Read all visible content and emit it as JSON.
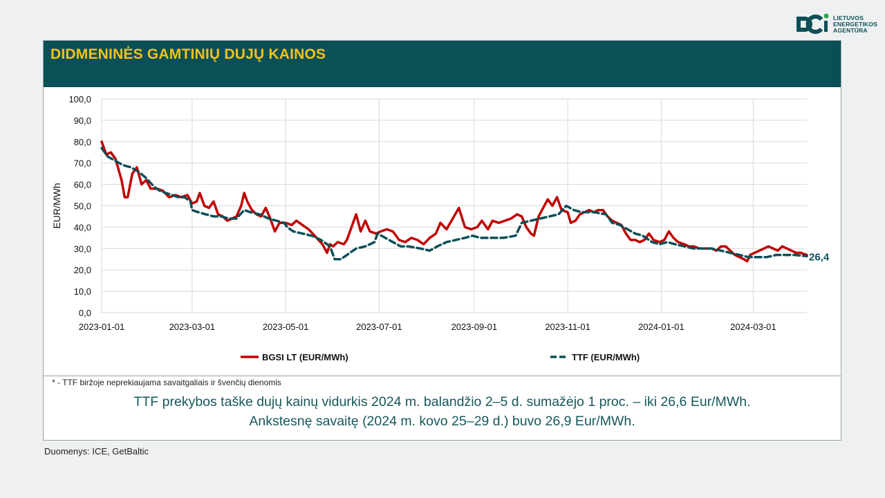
{
  "logo": {
    "icon": "lea-logo-icon",
    "lines": [
      "LIETUVOS",
      "ENERGETIKOS",
      "AGENTŪRA"
    ]
  },
  "header": {
    "title": "DIDMENINĖS GAMTINIŲ DUJŲ KAINOS"
  },
  "footnote": "* - TTF biržoje neprekiaujama savaitgaliais ir švenčių dienomis",
  "summary": {
    "line1": "TTF prekybos taške dujų kainų vidurkis 2024 m. balandžio 2–5 d. sumažėjo 1 proc. – iki 26,6 Eur/MWh.",
    "line2": "Ankstesnę savaitę (2024 m. kovo 25–29 d.) buvo 26,9 Eur/MWh."
  },
  "source": "Duomenys: ICE, GetBaltic",
  "colors": {
    "header_bg": "#0b4f57",
    "title": "#f2c318",
    "bgsi": "#c00000",
    "ttf": "#0b4f57",
    "text": "#17575c"
  },
  "chart_data": {
    "type": "line",
    "ylabel": "EUR/MWh",
    "ylim": [
      0,
      100
    ],
    "yticks": [
      "0,0",
      "10,0",
      "20,0",
      "30,0",
      "40,0",
      "50,0",
      "60,0",
      "70,0",
      "80,0",
      "90,0",
      "100,0"
    ],
    "xlim": [
      "2023-01-01",
      "2024-04-05"
    ],
    "xticks": [
      "2023-01-01",
      "2023-03-01",
      "2023-05-01",
      "2023-07-01",
      "2023-09-01",
      "2023-11-01",
      "2024-01-01",
      "2024-03-01"
    ],
    "grid": true,
    "legend_position": "bottom",
    "end_label": "26,4",
    "series": [
      {
        "name": "BGSI LT (EUR/MWh)",
        "style": "solid",
        "points": [
          [
            "2023-01-01",
            80
          ],
          [
            "2023-01-04",
            74
          ],
          [
            "2023-01-07",
            75
          ],
          [
            "2023-01-10",
            72
          ],
          [
            "2023-01-14",
            62
          ],
          [
            "2023-01-16",
            54
          ],
          [
            "2023-01-18",
            54
          ],
          [
            "2023-01-21",
            65
          ],
          [
            "2023-01-24",
            68
          ],
          [
            "2023-01-27",
            60
          ],
          [
            "2023-01-30",
            62
          ],
          [
            "2023-02-02",
            58
          ],
          [
            "2023-02-06",
            58
          ],
          [
            "2023-02-10",
            57
          ],
          [
            "2023-02-14",
            54
          ],
          [
            "2023-02-18",
            55
          ],
          [
            "2023-02-22",
            54
          ],
          [
            "2023-02-26",
            55
          ],
          [
            "2023-03-01",
            51
          ],
          [
            "2023-03-04",
            52
          ],
          [
            "2023-03-06",
            56
          ],
          [
            "2023-03-09",
            50
          ],
          [
            "2023-03-12",
            49
          ],
          [
            "2023-03-15",
            52
          ],
          [
            "2023-03-18",
            46
          ],
          [
            "2023-03-21",
            45
          ],
          [
            "2023-03-24",
            43
          ],
          [
            "2023-03-27",
            44
          ],
          [
            "2023-03-30",
            45
          ],
          [
            "2023-04-02",
            50
          ],
          [
            "2023-04-04",
            56
          ],
          [
            "2023-04-06",
            52
          ],
          [
            "2023-04-09",
            48
          ],
          [
            "2023-04-12",
            46
          ],
          [
            "2023-04-15",
            45
          ],
          [
            "2023-04-18",
            49
          ],
          [
            "2023-04-21",
            44
          ],
          [
            "2023-04-24",
            38
          ],
          [
            "2023-04-27",
            42
          ],
          [
            "2023-05-01",
            42
          ],
          [
            "2023-05-05",
            41
          ],
          [
            "2023-05-08",
            43
          ],
          [
            "2023-05-12",
            41
          ],
          [
            "2023-05-16",
            39
          ],
          [
            "2023-05-20",
            36
          ],
          [
            "2023-05-25",
            32
          ],
          [
            "2023-05-28",
            28
          ],
          [
            "2023-05-30",
            32
          ],
          [
            "2023-06-01",
            31
          ],
          [
            "2023-06-04",
            33
          ],
          [
            "2023-06-08",
            32
          ],
          [
            "2023-06-10",
            34
          ],
          [
            "2023-06-13",
            40
          ],
          [
            "2023-06-16",
            46
          ],
          [
            "2023-06-19",
            38
          ],
          [
            "2023-06-22",
            43
          ],
          [
            "2023-06-25",
            38
          ],
          [
            "2023-06-29",
            37
          ],
          [
            "2023-07-02",
            38
          ],
          [
            "2023-07-06",
            39
          ],
          [
            "2023-07-10",
            38
          ],
          [
            "2023-07-14",
            34
          ],
          [
            "2023-07-18",
            33
          ],
          [
            "2023-07-22",
            35
          ],
          [
            "2023-07-26",
            34
          ],
          [
            "2023-07-30",
            32
          ],
          [
            "2023-08-03",
            35
          ],
          [
            "2023-08-07",
            37
          ],
          [
            "2023-08-10",
            42
          ],
          [
            "2023-08-14",
            39
          ],
          [
            "2023-08-18",
            44
          ],
          [
            "2023-08-22",
            49
          ],
          [
            "2023-08-26",
            40
          ],
          [
            "2023-08-30",
            39
          ],
          [
            "2023-09-03",
            40
          ],
          [
            "2023-09-06",
            43
          ],
          [
            "2023-09-10",
            39
          ],
          [
            "2023-09-13",
            43
          ],
          [
            "2023-09-17",
            42
          ],
          [
            "2023-09-21",
            43
          ],
          [
            "2023-09-25",
            44
          ],
          [
            "2023-09-29",
            46
          ],
          [
            "2023-10-02",
            45
          ],
          [
            "2023-10-05",
            40
          ],
          [
            "2023-10-08",
            37
          ],
          [
            "2023-10-10",
            36
          ],
          [
            "2023-10-13",
            45
          ],
          [
            "2023-10-16",
            49
          ],
          [
            "2023-10-19",
            53
          ],
          [
            "2023-10-22",
            50
          ],
          [
            "2023-10-25",
            54
          ],
          [
            "2023-10-28",
            48
          ],
          [
            "2023-11-01",
            47
          ],
          [
            "2023-11-03",
            42
          ],
          [
            "2023-11-06",
            43
          ],
          [
            "2023-11-09",
            46
          ],
          [
            "2023-11-12",
            47
          ],
          [
            "2023-11-15",
            48
          ],
          [
            "2023-11-18",
            47
          ],
          [
            "2023-11-21",
            48
          ],
          [
            "2023-11-24",
            48
          ],
          [
            "2023-11-27",
            45
          ],
          [
            "2023-11-30",
            43
          ],
          [
            "2023-12-03",
            42
          ],
          [
            "2023-12-06",
            41
          ],
          [
            "2023-12-09",
            37
          ],
          [
            "2023-12-12",
            34
          ],
          [
            "2023-12-15",
            34
          ],
          [
            "2023-12-18",
            33
          ],
          [
            "2023-12-21",
            34
          ],
          [
            "2023-12-24",
            37
          ],
          [
            "2023-12-27",
            34
          ],
          [
            "2023-12-31",
            33
          ],
          [
            "2024-01-03",
            34
          ],
          [
            "2024-01-06",
            38
          ],
          [
            "2024-01-09",
            35
          ],
          [
            "2024-01-12",
            33
          ],
          [
            "2024-01-16",
            32
          ],
          [
            "2024-01-19",
            31
          ],
          [
            "2024-01-22",
            31
          ],
          [
            "2024-01-26",
            30
          ],
          [
            "2024-01-30",
            30
          ],
          [
            "2024-02-03",
            30
          ],
          [
            "2024-02-06",
            29
          ],
          [
            "2024-02-09",
            31
          ],
          [
            "2024-02-12",
            31
          ],
          [
            "2024-02-15",
            29
          ],
          [
            "2024-02-18",
            27
          ],
          [
            "2024-02-21",
            26
          ],
          [
            "2024-02-24",
            25
          ],
          [
            "2024-02-26",
            24
          ],
          [
            "2024-02-28",
            27
          ],
          [
            "2024-03-02",
            28
          ],
          [
            "2024-03-05",
            29
          ],
          [
            "2024-03-08",
            30
          ],
          [
            "2024-03-11",
            31
          ],
          [
            "2024-03-14",
            30
          ],
          [
            "2024-03-17",
            29
          ],
          [
            "2024-03-20",
            31
          ],
          [
            "2024-03-23",
            30
          ],
          [
            "2024-03-26",
            29
          ],
          [
            "2024-03-29",
            28
          ],
          [
            "2024-04-01",
            28
          ],
          [
            "2024-04-05",
            27
          ]
        ]
      },
      {
        "name": "TTF (EUR/MWh)",
        "style": "dashed",
        "points": [
          [
            "2023-01-01",
            77
          ],
          [
            "2023-01-05",
            73
          ],
          [
            "2023-01-10",
            71
          ],
          [
            "2023-01-15",
            69
          ],
          [
            "2023-01-20",
            68
          ],
          [
            "2023-01-25",
            66
          ],
          [
            "2023-01-30",
            63
          ],
          [
            "2023-02-04",
            59
          ],
          [
            "2023-02-08",
            57
          ],
          [
            "2023-02-12",
            56
          ],
          [
            "2023-02-16",
            55
          ],
          [
            "2023-02-20",
            54
          ],
          [
            "2023-02-24",
            54
          ],
          [
            "2023-02-28",
            52
          ],
          [
            "2023-03-01",
            48
          ],
          [
            "2023-03-05",
            47
          ],
          [
            "2023-03-10",
            46
          ],
          [
            "2023-03-15",
            45
          ],
          [
            "2023-03-20",
            45
          ],
          [
            "2023-03-25",
            44
          ],
          [
            "2023-03-30",
            44
          ],
          [
            "2023-04-04",
            48
          ],
          [
            "2023-04-08",
            47
          ],
          [
            "2023-04-14",
            46
          ],
          [
            "2023-04-20",
            44
          ],
          [
            "2023-04-25",
            43
          ],
          [
            "2023-04-30",
            42
          ],
          [
            "2023-05-02",
            40
          ],
          [
            "2023-05-06",
            38
          ],
          [
            "2023-05-12",
            37
          ],
          [
            "2023-05-18",
            36
          ],
          [
            "2023-05-24",
            34
          ],
          [
            "2023-05-30",
            31
          ],
          [
            "2023-06-02",
            25
          ],
          [
            "2023-06-06",
            25
          ],
          [
            "2023-06-10",
            27
          ],
          [
            "2023-06-16",
            30
          ],
          [
            "2023-06-22",
            31
          ],
          [
            "2023-06-28",
            33
          ],
          [
            "2023-06-30",
            37
          ],
          [
            "2023-07-05",
            35
          ],
          [
            "2023-07-10",
            33
          ],
          [
            "2023-07-15",
            31
          ],
          [
            "2023-07-20",
            31
          ],
          [
            "2023-07-28",
            30
          ],
          [
            "2023-08-03",
            29
          ],
          [
            "2023-08-08",
            31
          ],
          [
            "2023-08-14",
            33
          ],
          [
            "2023-08-20",
            34
          ],
          [
            "2023-08-26",
            35
          ],
          [
            "2023-08-31",
            36
          ],
          [
            "2023-09-05",
            35
          ],
          [
            "2023-09-12",
            35
          ],
          [
            "2023-09-20",
            35
          ],
          [
            "2023-09-28",
            36
          ],
          [
            "2023-10-02",
            42
          ],
          [
            "2023-10-08",
            43
          ],
          [
            "2023-10-14",
            44
          ],
          [
            "2023-10-20",
            45
          ],
          [
            "2023-10-26",
            46
          ],
          [
            "2023-10-31",
            50
          ],
          [
            "2023-11-05",
            48
          ],
          [
            "2023-11-10",
            47
          ],
          [
            "2023-11-18",
            47
          ],
          [
            "2023-11-26",
            46
          ],
          [
            "2023-11-30",
            42
          ],
          [
            "2023-12-05",
            41
          ],
          [
            "2023-12-10",
            39
          ],
          [
            "2023-12-15",
            37
          ],
          [
            "2023-12-20",
            36
          ],
          [
            "2023-12-26",
            33
          ],
          [
            "2023-12-31",
            32
          ],
          [
            "2024-01-05",
            33
          ],
          [
            "2024-01-10",
            32
          ],
          [
            "2024-01-16",
            31
          ],
          [
            "2024-01-22",
            30
          ],
          [
            "2024-01-28",
            30
          ],
          [
            "2024-02-03",
            30
          ],
          [
            "2024-02-09",
            29
          ],
          [
            "2024-02-15",
            28
          ],
          [
            "2024-02-21",
            27
          ],
          [
            "2024-02-27",
            26
          ],
          [
            "2024-03-04",
            26
          ],
          [
            "2024-03-10",
            26
          ],
          [
            "2024-03-16",
            27
          ],
          [
            "2024-03-22",
            27
          ],
          [
            "2024-03-28",
            27
          ],
          [
            "2024-04-05",
            26.4
          ]
        ]
      }
    ]
  }
}
